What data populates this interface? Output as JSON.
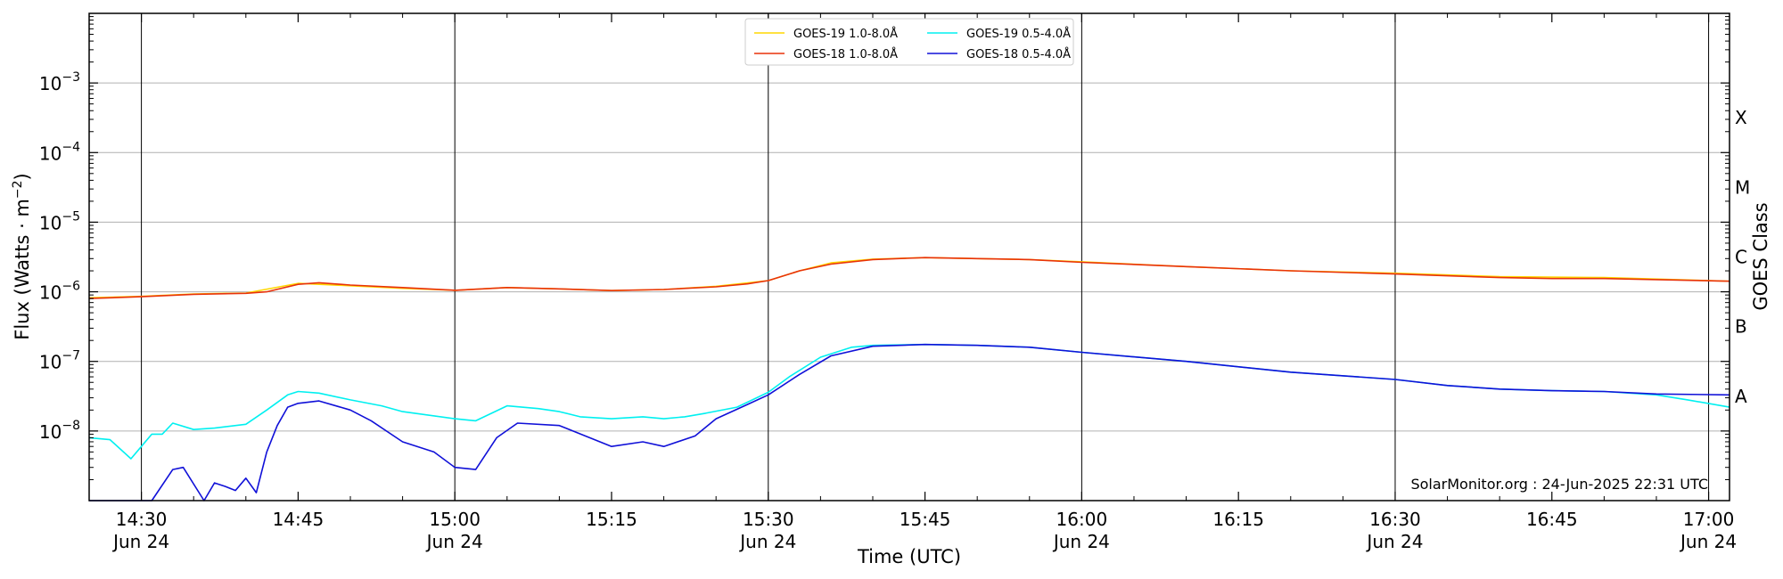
{
  "chart_data": {
    "type": "line",
    "xlabel": "Time (UTC)",
    "ylabel": "Flux (Watts · m",
    "ylabel_sup": "−2",
    "ylabel_close": ")",
    "right_label": "GOES Class",
    "credit": "SolarMonitor.org : 24-Jun-2025 22:31 UTC",
    "y_scale": "log",
    "ylim": [
      1e-09,
      0.01
    ],
    "xlim": [
      "14:25",
      "17:02"
    ],
    "grid": "horizontal",
    "legend_position": "top-center",
    "y_ticks": [
      {
        "value": 1e-08,
        "base": "10",
        "exp": "−8"
      },
      {
        "value": 1e-07,
        "base": "10",
        "exp": "−7"
      },
      {
        "value": 1e-06,
        "base": "10",
        "exp": "−6"
      },
      {
        "value": 1e-05,
        "base": "10",
        "exp": "−5"
      },
      {
        "value": 0.0001,
        "base": "10",
        "exp": "−4"
      },
      {
        "value": 0.001,
        "base": "10",
        "exp": "−3"
      }
    ],
    "x_ticks": [
      {
        "time": "14:30",
        "label": "14:30",
        "sub": "Jun 24",
        "major": true
      },
      {
        "time": "14:45",
        "label": "14:45",
        "sub": "",
        "major": false
      },
      {
        "time": "15:00",
        "label": "15:00",
        "sub": "Jun 24",
        "major": true
      },
      {
        "time": "15:15",
        "label": "15:15",
        "sub": "",
        "major": false
      },
      {
        "time": "15:30",
        "label": "15:30",
        "sub": "Jun 24",
        "major": true
      },
      {
        "time": "15:45",
        "label": "15:45",
        "sub": "",
        "major": false
      },
      {
        "time": "16:00",
        "label": "16:00",
        "sub": "Jun 24",
        "major": true
      },
      {
        "time": "16:15",
        "label": "16:15",
        "sub": "",
        "major": false
      },
      {
        "time": "16:30",
        "label": "16:30",
        "sub": "Jun 24",
        "major": true
      },
      {
        "time": "16:45",
        "label": "16:45",
        "sub": "",
        "major": false
      },
      {
        "time": "17:00",
        "label": "17:00",
        "sub": "Jun 24",
        "major": true
      }
    ],
    "goes_classes": [
      {
        "label": "A",
        "value": 3.16e-08
      },
      {
        "label": "B",
        "value": 3.16e-07
      },
      {
        "label": "C",
        "value": 3.16e-06
      },
      {
        "label": "M",
        "value": 3.16e-05
      },
      {
        "label": "X",
        "value": 0.000316
      }
    ],
    "series": [
      {
        "name": "GOES-19 1.0-8.0Å",
        "color": "#ffd700",
        "x": [
          "14:25",
          "14:30",
          "14:35",
          "14:40",
          "14:45",
          "14:50",
          "14:55",
          "15:00",
          "15:05",
          "15:10",
          "15:15",
          "15:20",
          "15:25",
          "15:30",
          "15:33",
          "15:36",
          "15:40",
          "15:45",
          "15:50",
          "15:55",
          "16:00",
          "16:10",
          "16:20",
          "16:30",
          "16:40",
          "16:50",
          "17:02"
        ],
        "values": [
          8.2e-07,
          8.6e-07,
          9.3e-07,
          9.6e-07,
          1.32e-06,
          1.22e-06,
          1.12e-06,
          1.05e-06,
          1.15e-06,
          1.1e-06,
          1.04e-06,
          1.08e-06,
          1.2e-06,
          1.45e-06,
          2e-06,
          2.6e-06,
          2.95e-06,
          3.1e-06,
          3e-06,
          2.9e-06,
          2.7e-06,
          2.3e-06,
          2e-06,
          1.85e-06,
          1.65e-06,
          1.6e-06,
          1.42e-06
        ]
      },
      {
        "name": "GOES-18 1.0-8.0Å",
        "color": "#e8320a",
        "x": [
          "14:25",
          "14:30",
          "14:35",
          "14:40",
          "14:42",
          "14:45",
          "14:47",
          "14:50",
          "14:55",
          "15:00",
          "15:05",
          "15:10",
          "15:15",
          "15:20",
          "15:25",
          "15:28",
          "15:30",
          "15:33",
          "15:36",
          "15:40",
          "15:45",
          "15:50",
          "15:55",
          "16:00",
          "16:10",
          "16:20",
          "16:30",
          "16:40",
          "16:45",
          "16:50",
          "17:02"
        ],
        "values": [
          8e-07,
          8.5e-07,
          9.2e-07,
          9.5e-07,
          1e-06,
          1.28e-06,
          1.35e-06,
          1.25e-06,
          1.15e-06,
          1.05e-06,
          1.15e-06,
          1.1e-06,
          1.04e-06,
          1.08e-06,
          1.18e-06,
          1.3e-06,
          1.45e-06,
          2e-06,
          2.5e-06,
          2.9e-06,
          3.1e-06,
          3e-06,
          2.9e-06,
          2.65e-06,
          2.3e-06,
          2e-06,
          1.8e-06,
          1.6e-06,
          1.55e-06,
          1.55e-06,
          1.42e-06
        ]
      },
      {
        "name": "GOES-19 0.5-4.0Å",
        "color": "#00f0f0",
        "x": [
          "14:25",
          "14:27",
          "14:29",
          "14:30",
          "14:31",
          "14:32",
          "14:33",
          "14:35",
          "14:37",
          "14:40",
          "14:42",
          "14:44",
          "14:45",
          "14:47",
          "14:50",
          "14:53",
          "14:55",
          "15:00",
          "15:02",
          "15:05",
          "15:08",
          "15:10",
          "15:12",
          "15:15",
          "15:18",
          "15:20",
          "15:22",
          "15:24",
          "15:27",
          "15:30",
          "15:32",
          "15:35",
          "15:38",
          "15:40",
          "15:45",
          "15:50",
          "15:55",
          "16:00",
          "16:10",
          "16:20",
          "16:30",
          "16:35",
          "16:40",
          "16:45",
          "16:50",
          "16:55",
          "16:58",
          "17:02"
        ],
        "values": [
          8e-09,
          7.5e-09,
          4e-09,
          6e-09,
          9e-09,
          9e-09,
          1.3e-08,
          1.05e-08,
          1.1e-08,
          1.25e-08,
          2e-08,
          3.3e-08,
          3.7e-08,
          3.5e-08,
          2.8e-08,
          2.3e-08,
          1.9e-08,
          1.5e-08,
          1.4e-08,
          2.3e-08,
          2.1e-08,
          1.9e-08,
          1.6e-08,
          1.5e-08,
          1.6e-08,
          1.5e-08,
          1.6e-08,
          1.8e-08,
          2.2e-08,
          3.6e-08,
          6e-08,
          1.15e-07,
          1.6e-07,
          1.7e-07,
          1.75e-07,
          1.7e-07,
          1.6e-07,
          1.35e-07,
          1e-07,
          7e-08,
          5.5e-08,
          4.5e-08,
          4e-08,
          3.8e-08,
          3.7e-08,
          3.3e-08,
          2.8e-08,
          2.2e-08
        ]
      },
      {
        "name": "GOES-18 0.5-4.0Å",
        "color": "#1010d8",
        "x": [
          "14:25",
          "14:28",
          "14:31",
          "14:33",
          "14:34",
          "14:36",
          "14:37",
          "14:38",
          "14:39",
          "14:40",
          "14:41",
          "14:42",
          "14:43",
          "14:44",
          "14:45",
          "14:47",
          "14:50",
          "14:52",
          "14:55",
          "14:58",
          "15:00",
          "15:02",
          "15:04",
          "15:06",
          "15:10",
          "15:15",
          "15:18",
          "15:20",
          "15:23",
          "15:25",
          "15:28",
          "15:30",
          "15:33",
          "15:36",
          "15:40",
          "15:45",
          "15:50",
          "15:55",
          "16:00",
          "16:10",
          "16:20",
          "16:30",
          "16:35",
          "16:40",
          "16:45",
          "16:50",
          "16:55",
          "17:02"
        ],
        "values": [
          1e-09,
          1e-09,
          1e-09,
          2.8e-09,
          3e-09,
          1e-09,
          1.8e-09,
          1.6e-09,
          1.4e-09,
          2.1e-09,
          1.3e-09,
          5e-09,
          1.2e-08,
          2.2e-08,
          2.5e-08,
          2.7e-08,
          2e-08,
          1.4e-08,
          7e-09,
          5e-09,
          3e-09,
          2.8e-09,
          8e-09,
          1.3e-08,
          1.2e-08,
          6e-09,
          7e-09,
          6e-09,
          8.5e-09,
          1.5e-08,
          2.4e-08,
          3.3e-08,
          6.5e-08,
          1.2e-07,
          1.65e-07,
          1.75e-07,
          1.7e-07,
          1.6e-07,
          1.35e-07,
          1e-07,
          7e-08,
          5.5e-08,
          4.5e-08,
          4e-08,
          3.8e-08,
          3.7e-08,
          3.4e-08,
          3.3e-08
        ]
      }
    ]
  }
}
